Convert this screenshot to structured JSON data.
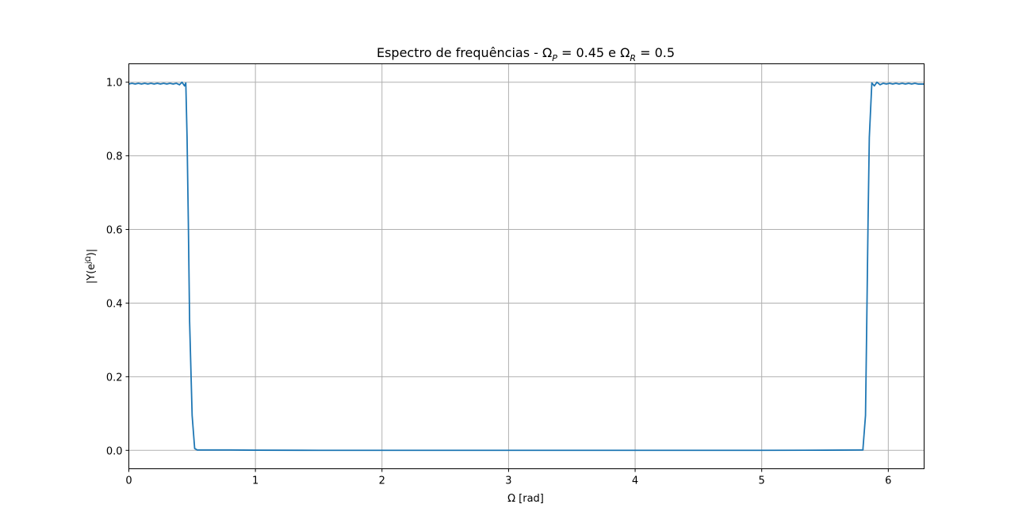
{
  "chart_data": {
    "type": "line",
    "title": {
      "prefix": "Espectro de frequências - Ω",
      "sub1": "P",
      "middle": " = 0.45 e Ω",
      "sub2": "R",
      "suffix": " = 0.5"
    },
    "xlabel": "Ω [rad]",
    "ylabel": {
      "prefix": "|Y(e",
      "superscript": "jΩ",
      "suffix": ")|"
    },
    "xlim": [
      0,
      6.283
    ],
    "ylim": [
      -0.05,
      1.05
    ],
    "xticks": [
      0,
      1,
      2,
      3,
      4,
      5,
      6
    ],
    "xtick_labels": [
      "0",
      "1",
      "2",
      "3",
      "4",
      "5",
      "6"
    ],
    "yticks": [
      0.0,
      0.2,
      0.4,
      0.6,
      0.8,
      1.0
    ],
    "ytick_labels": [
      "0.0",
      "0.2",
      "0.4",
      "0.6",
      "0.8",
      "1.0"
    ],
    "grid": true,
    "line_color": "#1f77b4",
    "series": [
      {
        "x": [
          0,
          0.025,
          0.05,
          0.075,
          0.1,
          0.125,
          0.15,
          0.175,
          0.2,
          0.225,
          0.25,
          0.275,
          0.3,
          0.325,
          0.35,
          0.375,
          0.4,
          0.42,
          0.44,
          0.45,
          0.46,
          0.47,
          0.48,
          0.5,
          0.52,
          0.54,
          0.6,
          0.8,
          1.0,
          1.5,
          2.0,
          3.0,
          4.0,
          5.0,
          5.5,
          5.78,
          5.8,
          5.8,
          5.82,
          5.83,
          5.84,
          5.85,
          5.87,
          5.89,
          5.91,
          5.935,
          5.96,
          5.985,
          6.01,
          6.035,
          6.06,
          6.085,
          6.11,
          6.135,
          6.16,
          6.185,
          6.21,
          6.235,
          6.283
        ],
        "y": [
          0.995,
          0.997,
          0.995,
          0.997,
          0.995,
          0.997,
          0.995,
          0.997,
          0.995,
          0.997,
          0.995,
          0.997,
          0.995,
          0.997,
          0.995,
          0.997,
          0.993,
          1.0,
          0.99,
          0.998,
          0.85,
          0.62,
          0.35,
          0.095,
          0.005,
          0.001,
          0.001,
          0.001,
          0.0005,
          0.0,
          0.0,
          0.0,
          0.0,
          0.0,
          0.0005,
          0.001,
          0.001,
          0.005,
          0.095,
          0.35,
          0.62,
          0.85,
          0.998,
          0.99,
          1.0,
          0.993,
          0.997,
          0.995,
          0.997,
          0.995,
          0.997,
          0.995,
          0.997,
          0.995,
          0.997,
          0.995,
          0.997,
          0.995,
          0.995
        ]
      }
    ]
  }
}
